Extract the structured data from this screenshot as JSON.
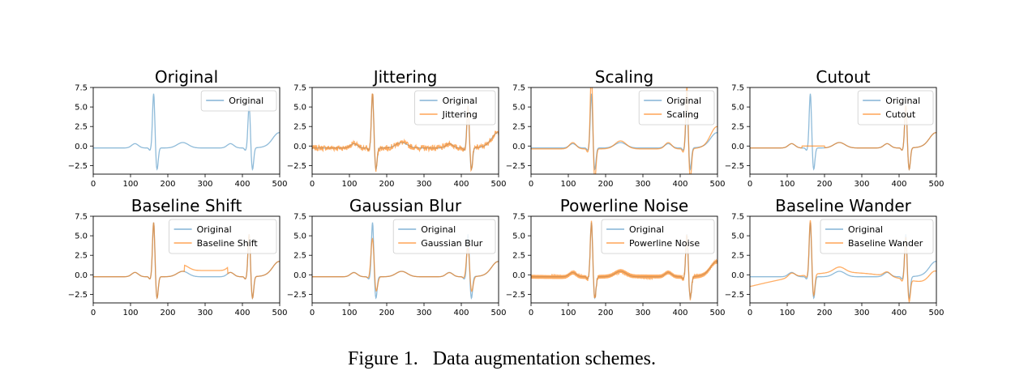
{
  "caption": {
    "label": "Figure 1.",
    "text": "Data augmentation schemes."
  },
  "colors": {
    "original": "#1f77b4",
    "augmented": "#ff7f0e",
    "axis": "#000000"
  },
  "chart_data": [
    {
      "type": "line",
      "title": "Original",
      "xlim": [
        0,
        500
      ],
      "ylim": [
        -3.6,
        7.5
      ],
      "xticks": [
        "0",
        "100",
        "200",
        "300",
        "400",
        "500"
      ],
      "yticks": [
        "-2.5",
        "0.0",
        "2.5",
        "5.0",
        "7.5"
      ],
      "legend_placement": "upper right",
      "series": [
        {
          "name": "Original",
          "augmentation": "none"
        }
      ]
    },
    {
      "type": "line",
      "title": "Jittering",
      "xlim": [
        0,
        500
      ],
      "ylim": [
        -3.6,
        7.5
      ],
      "xticks": [
        "0",
        "100",
        "200",
        "300",
        "400",
        "500"
      ],
      "yticks": [
        "-2.5",
        "0.0",
        "2.5",
        "5.0",
        "7.5"
      ],
      "legend_placement": "upper right",
      "series": [
        {
          "name": "Original",
          "augmentation": "none"
        },
        {
          "name": "Jittering",
          "augmentation": "jitter"
        }
      ]
    },
    {
      "type": "line",
      "title": "Scaling",
      "xlim": [
        0,
        500
      ],
      "ylim": [
        -3.6,
        7.5
      ],
      "xticks": [
        "0",
        "100",
        "200",
        "300",
        "400",
        "500"
      ],
      "yticks": [
        "-2.5",
        "0.0",
        "2.5",
        "5.0",
        "7.5"
      ],
      "legend_placement": "upper right",
      "series": [
        {
          "name": "Original",
          "augmentation": "none"
        },
        {
          "name": "Scaling",
          "augmentation": "scale"
        }
      ]
    },
    {
      "type": "line",
      "title": "Cutout",
      "xlim": [
        0,
        500
      ],
      "ylim": [
        -3.6,
        7.5
      ],
      "xticks": [
        "0",
        "100",
        "200",
        "300",
        "400",
        "500"
      ],
      "yticks": [
        "-2.5",
        "0.0",
        "2.5",
        "5.0",
        "7.5"
      ],
      "legend_placement": "upper right",
      "series": [
        {
          "name": "Original",
          "augmentation": "none"
        },
        {
          "name": "Cutout",
          "augmentation": "cutout"
        }
      ]
    },
    {
      "type": "line",
      "title": "Baseline Shift",
      "xlim": [
        0,
        500
      ],
      "ylim": [
        -3.6,
        7.5
      ],
      "xticks": [
        "0",
        "100",
        "200",
        "300",
        "400",
        "500"
      ],
      "yticks": [
        "-2.5",
        "0.0",
        "2.5",
        "5.0",
        "7.5"
      ],
      "legend_placement": "upper right",
      "series": [
        {
          "name": "Original",
          "augmentation": "none"
        },
        {
          "name": "Baseline Shift",
          "augmentation": "shift"
        }
      ]
    },
    {
      "type": "line",
      "title": "Gaussian Blur",
      "xlim": [
        0,
        500
      ],
      "ylim": [
        -3.6,
        7.5
      ],
      "xticks": [
        "0",
        "100",
        "200",
        "300",
        "400",
        "500"
      ],
      "yticks": [
        "-2.5",
        "0.0",
        "2.5",
        "5.0",
        "7.5"
      ],
      "legend_placement": "upper right",
      "series": [
        {
          "name": "Original",
          "augmentation": "none"
        },
        {
          "name": "Gaussian Blur",
          "augmentation": "blur"
        }
      ]
    },
    {
      "type": "line",
      "title": "Powerline Noise",
      "xlim": [
        0,
        500
      ],
      "ylim": [
        -3.6,
        7.5
      ],
      "xticks": [
        "0",
        "100",
        "200",
        "300",
        "400",
        "500"
      ],
      "yticks": [
        "-2.5",
        "0.0",
        "2.5",
        "5.0",
        "7.5"
      ],
      "legend_placement": "upper right",
      "series": [
        {
          "name": "Original",
          "augmentation": "none"
        },
        {
          "name": "Powerline Noise",
          "augmentation": "powerline"
        }
      ]
    },
    {
      "type": "line",
      "title": "Baseline Wander",
      "xlim": [
        0,
        500
      ],
      "ylim": [
        -3.6,
        7.5
      ],
      "xticks": [
        "0",
        "100",
        "200",
        "300",
        "400",
        "500"
      ],
      "yticks": [
        "-2.5",
        "0.0",
        "2.5",
        "5.0",
        "7.5"
      ],
      "legend_placement": "upper right",
      "series": [
        {
          "name": "Original",
          "augmentation": "none"
        },
        {
          "name": "Baseline Wander",
          "augmentation": "wander"
        }
      ]
    }
  ]
}
